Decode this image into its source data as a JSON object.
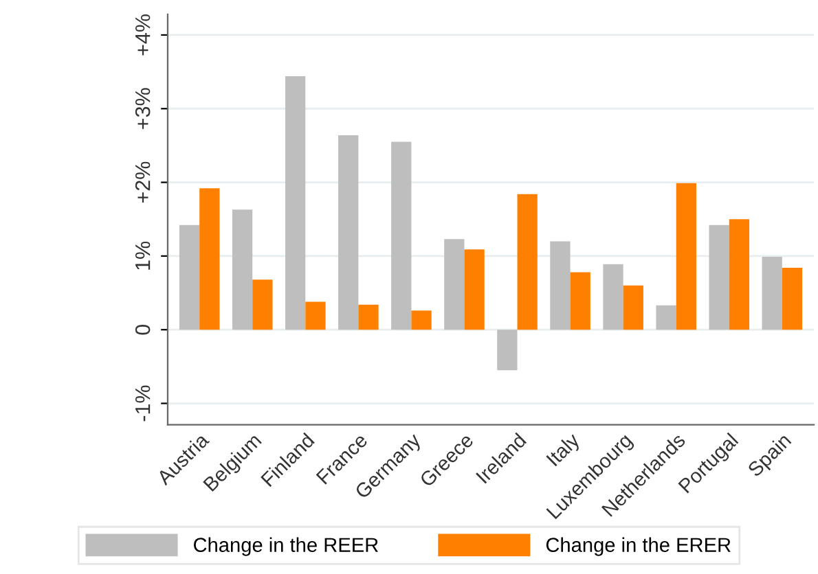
{
  "chart_data": {
    "type": "bar",
    "categories": [
      "Austria",
      "Belgium",
      "Finland",
      "France",
      "Germany",
      "Greece",
      "Ireland",
      "Italy",
      "Luxembourg",
      "Netherlands",
      "Portugal",
      "Spain"
    ],
    "series": [
      {
        "name": "Change in the REER",
        "color": "#bebebe",
        "values": [
          1.42,
          1.63,
          3.44,
          2.64,
          2.55,
          1.23,
          -0.55,
          1.2,
          0.89,
          0.33,
          1.42,
          0.99
        ]
      },
      {
        "name": "Change in the ERER",
        "color": "#ff8000",
        "values": [
          1.92,
          0.68,
          0.38,
          0.34,
          0.26,
          1.09,
          1.84,
          0.78,
          0.6,
          1.99,
          1.5,
          0.84
        ]
      }
    ],
    "ylim": [
      -1.29,
      4.28
    ],
    "yticks": [
      {
        "value": -1,
        "label": "-1%"
      },
      0,
      {
        "value": 1,
        "label": "1%"
      },
      {
        "value": 2,
        "label": "+2%"
      },
      {
        "value": 3,
        "label": "+3%"
      },
      {
        "value": 4,
        "label": "+4%"
      }
    ],
    "grid": "y",
    "legend": "bottom"
  }
}
